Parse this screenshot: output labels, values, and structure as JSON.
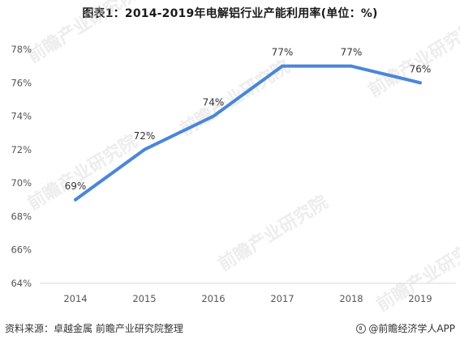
{
  "chart_data": {
    "type": "line",
    "title": "图表1：2014-2019年电解铝行业产能利用率(单位：%)",
    "categories": [
      "2014",
      "2015",
      "2016",
      "2017",
      "2018",
      "2019"
    ],
    "series": [
      {
        "values": [
          69,
          72,
          74,
          77,
          77,
          76
        ],
        "data_labels": [
          "69%",
          "72%",
          "74%",
          "77%",
          "77%",
          "76%"
        ],
        "color": "#4a86d9"
      }
    ],
    "xlabel": "",
    "ylabel": "",
    "ylim": [
      64,
      78
    ],
    "yticks": [
      "64%",
      "66%",
      "68%",
      "70%",
      "72%",
      "74%",
      "76%",
      "78%"
    ],
    "ytick_values": [
      64,
      66,
      68,
      70,
      72,
      74,
      76,
      78
    ],
    "grid": false,
    "legend": "none"
  },
  "footer": {
    "source": "资料来源：卓越金属 前瞻产业研究院整理",
    "brand": "@前瞻经济学人APP"
  },
  "watermark": {
    "text": "前瞻产业研究院"
  },
  "colors": {
    "line": "#4a86d9",
    "axis": "#d9d9d9",
    "watermark": "#d8d8d8"
  }
}
